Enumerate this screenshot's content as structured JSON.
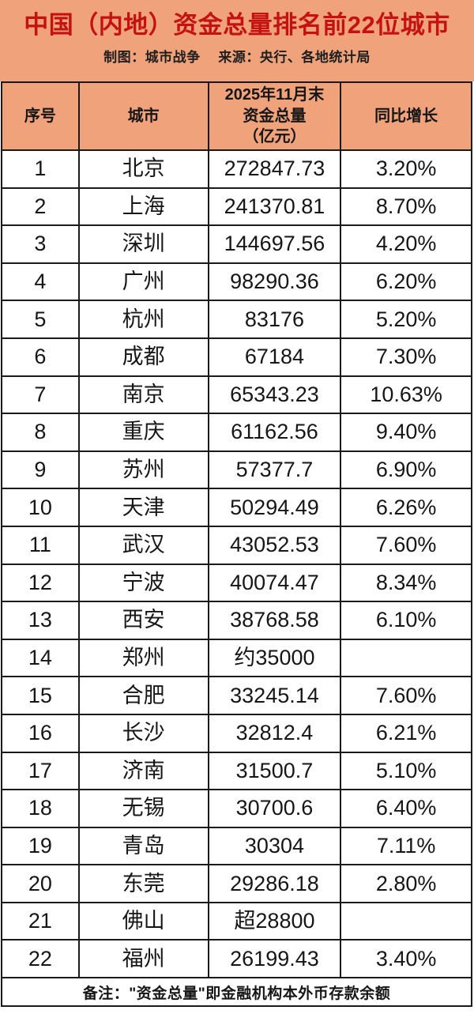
{
  "header": {
    "title": "中国（内地）资金总量排名前22位城市",
    "subtitle": "制图：城市战争　 来源：央行、各地统计局"
  },
  "chart_data": {
    "type": "table",
    "title": "中国（内地）资金总量排名前22位城市",
    "columns": [
      "序号",
      "城市",
      "2025年11月末\n资金总量\n（亿元）",
      "同比增长"
    ],
    "rows": [
      {
        "rank": "1",
        "city": "北京",
        "amount": "272847.73",
        "growth": "3.20%"
      },
      {
        "rank": "2",
        "city": "上海",
        "amount": "241370.81",
        "growth": "8.70%"
      },
      {
        "rank": "3",
        "city": "深圳",
        "amount": "144697.56",
        "growth": "4.20%"
      },
      {
        "rank": "4",
        "city": "广州",
        "amount": "98290.36",
        "growth": "6.20%"
      },
      {
        "rank": "5",
        "city": "杭州",
        "amount": "83176",
        "growth": "5.20%"
      },
      {
        "rank": "6",
        "city": "成都",
        "amount": "67184",
        "growth": "7.30%"
      },
      {
        "rank": "7",
        "city": "南京",
        "amount": "65343.23",
        "growth": "10.63%"
      },
      {
        "rank": "8",
        "city": "重庆",
        "amount": "61162.56",
        "growth": "9.40%"
      },
      {
        "rank": "9",
        "city": "苏州",
        "amount": "57377.7",
        "growth": "6.90%"
      },
      {
        "rank": "10",
        "city": "天津",
        "amount": "50294.49",
        "growth": "6.26%"
      },
      {
        "rank": "11",
        "city": "武汉",
        "amount": "43052.53",
        "growth": "7.60%"
      },
      {
        "rank": "12",
        "city": "宁波",
        "amount": "40074.47",
        "growth": "8.34%"
      },
      {
        "rank": "13",
        "city": "西安",
        "amount": "38768.58",
        "growth": "6.10%"
      },
      {
        "rank": "14",
        "city": "郑州",
        "amount": "约35000",
        "growth": ""
      },
      {
        "rank": "15",
        "city": "合肥",
        "amount": "33245.14",
        "growth": "7.60%"
      },
      {
        "rank": "16",
        "city": "长沙",
        "amount": "32812.4",
        "growth": "6.21%"
      },
      {
        "rank": "17",
        "city": "济南",
        "amount": "31500.7",
        "growth": "5.10%"
      },
      {
        "rank": "18",
        "city": "无锡",
        "amount": "30700.6",
        "growth": "6.40%"
      },
      {
        "rank": "19",
        "city": "青岛",
        "amount": "30304",
        "growth": "7.11%"
      },
      {
        "rank": "20",
        "city": "东莞",
        "amount": "29286.18",
        "growth": "2.80%"
      },
      {
        "rank": "21",
        "city": "佛山",
        "amount": "超28800",
        "growth": ""
      },
      {
        "rank": "22",
        "city": "福州",
        "amount": "26199.43",
        "growth": "3.40%"
      }
    ]
  },
  "footer": {
    "note": "备注：\"资金总量\"即金融机构本外币存款余额"
  },
  "colors": {
    "background_peach": "#F0A27A",
    "title_red": "#C41212",
    "border_black": "#1A1A1A"
  }
}
